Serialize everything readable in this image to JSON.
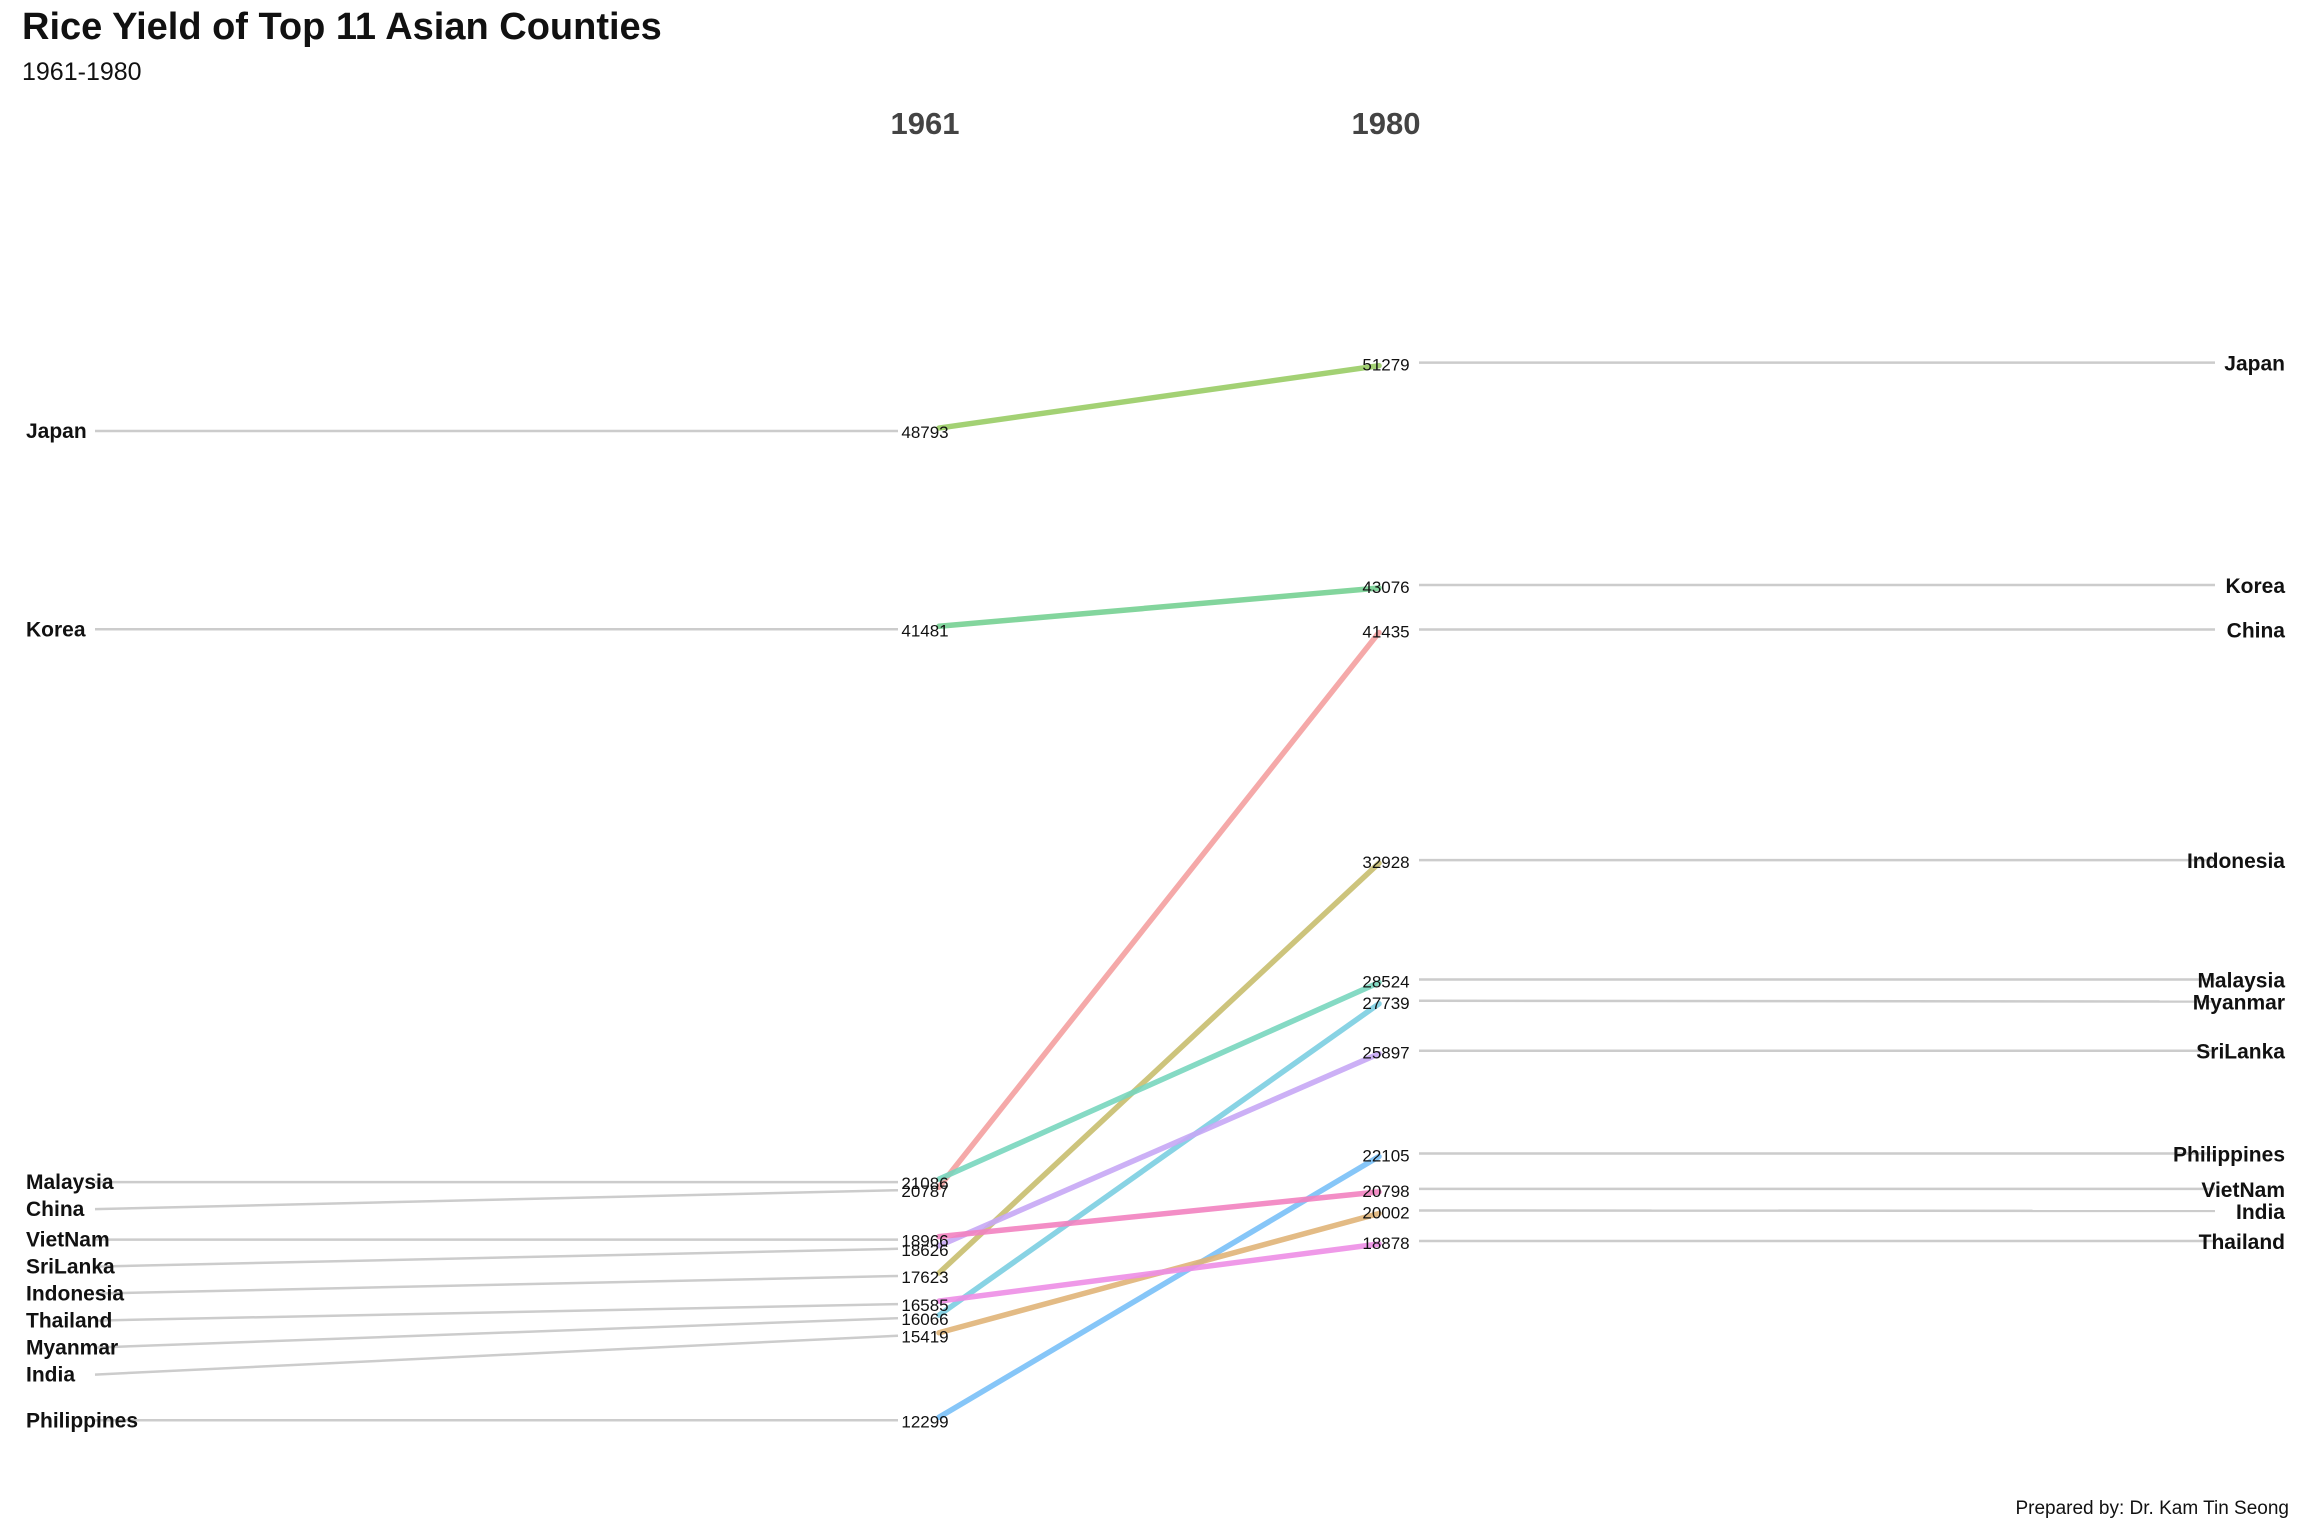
{
  "title": "Rice Yield of Top 11 Asian Counties",
  "subtitle": "1961-1980",
  "caption": "Prepared by: Dr. Kam Tin Seong",
  "chart_data": {
    "type": "slope",
    "x": [
      "1961",
      "1980"
    ],
    "series": [
      {
        "name": "Japan",
        "values": [
          48793,
          51279
        ],
        "color": "#9ACD66"
      },
      {
        "name": "Korea",
        "values": [
          41481,
          43076
        ],
        "color": "#76D193"
      },
      {
        "name": "China",
        "values": [
          20787,
          41435
        ],
        "color": "#F4A0A0"
      },
      {
        "name": "Indonesia",
        "values": [
          17623,
          32928
        ],
        "color": "#C8BE6E"
      },
      {
        "name": "Malaysia",
        "values": [
          21086,
          28524
        ],
        "color": "#78D6BE"
      },
      {
        "name": "Myanmar",
        "values": [
          16066,
          27739
        ],
        "color": "#7CCFE2"
      },
      {
        "name": "SriLanka",
        "values": [
          18626,
          25897
        ],
        "color": "#C7A8F6"
      },
      {
        "name": "Philippines",
        "values": [
          12299,
          22105
        ],
        "color": "#7AC0F8"
      },
      {
        "name": "VietNam",
        "values": [
          18966,
          20798
        ],
        "color": "#F282C0"
      },
      {
        "name": "India",
        "values": [
          15419,
          20002
        ],
        "color": "#E0B478"
      },
      {
        "name": "Thailand",
        "values": [
          16585,
          18878
        ],
        "color": "#EE8EE6"
      }
    ]
  }
}
